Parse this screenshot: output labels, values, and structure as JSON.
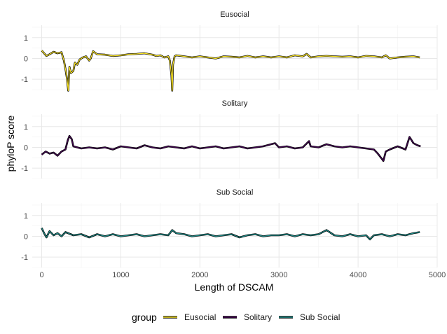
{
  "chart_data": {
    "type": "line",
    "xlabel": "Length of DSCAM",
    "ylabel": "phyloP score",
    "xlim": [
      -120,
      5000
    ],
    "ylim": [
      -1.5,
      1.6
    ],
    "xticks": [
      0,
      1000,
      2000,
      3000,
      4000,
      5000
    ],
    "yticks": [
      -1,
      0,
      1
    ],
    "grid": true,
    "legend": {
      "title": "group",
      "position": "bottom"
    },
    "facets": [
      {
        "title": "Eusocial",
        "color": "#FDE725",
        "points": [
          [
            0,
            0.38
          ],
          [
            60,
            0.12
          ],
          [
            100,
            0.2
          ],
          [
            150,
            0.32
          ],
          [
            200,
            0.25
          ],
          [
            250,
            0.3
          ],
          [
            280,
            -0.1
          ],
          [
            300,
            -0.5
          ],
          [
            320,
            -1.0
          ],
          [
            335,
            -1.55
          ],
          [
            350,
            -0.4
          ],
          [
            370,
            -0.7
          ],
          [
            400,
            -0.6
          ],
          [
            420,
            -0.2
          ],
          [
            450,
            -0.3
          ],
          [
            480,
            -0.05
          ],
          [
            520,
            0.05
          ],
          [
            560,
            0.1
          ],
          [
            600,
            -0.1
          ],
          [
            620,
            0.0
          ],
          [
            650,
            0.35
          ],
          [
            700,
            0.2
          ],
          [
            800,
            0.18
          ],
          [
            900,
            0.12
          ],
          [
            1000,
            0.15
          ],
          [
            1100,
            0.2
          ],
          [
            1200,
            0.22
          ],
          [
            1300,
            0.25
          ],
          [
            1400,
            0.18
          ],
          [
            1450,
            0.12
          ],
          [
            1500,
            0.15
          ],
          [
            1550,
            0.05
          ],
          [
            1600,
            0.1
          ],
          [
            1620,
            -0.1
          ],
          [
            1640,
            -0.8
          ],
          [
            1650,
            -1.55
          ],
          [
            1660,
            -0.3
          ],
          [
            1680,
            0.1
          ],
          [
            1700,
            0.15
          ],
          [
            1800,
            0.1
          ],
          [
            1900,
            0.05
          ],
          [
            2000,
            0.1
          ],
          [
            2100,
            0.05
          ],
          [
            2200,
            0.0
          ],
          [
            2300,
            0.1
          ],
          [
            2400,
            0.08
          ],
          [
            2500,
            0.05
          ],
          [
            2600,
            0.12
          ],
          [
            2700,
            0.05
          ],
          [
            2800,
            0.1
          ],
          [
            2900,
            0.05
          ],
          [
            3000,
            0.1
          ],
          [
            3100,
            0.05
          ],
          [
            3200,
            0.15
          ],
          [
            3300,
            0.1
          ],
          [
            3350,
            0.22
          ],
          [
            3400,
            0.05
          ],
          [
            3500,
            0.1
          ],
          [
            3600,
            0.12
          ],
          [
            3700,
            0.1
          ],
          [
            3800,
            0.08
          ],
          [
            3900,
            0.1
          ],
          [
            4000,
            0.05
          ],
          [
            4100,
            0.12
          ],
          [
            4200,
            0.1
          ],
          [
            4300,
            0.05
          ],
          [
            4350,
            0.15
          ],
          [
            4400,
            0.0
          ],
          [
            4500,
            0.05
          ],
          [
            4600,
            0.08
          ],
          [
            4700,
            0.1
          ],
          [
            4780,
            0.05
          ]
        ]
      },
      {
        "title": "Solitary",
        "color": "#440154",
        "points": [
          [
            0,
            -0.35
          ],
          [
            50,
            -0.2
          ],
          [
            100,
            -0.3
          ],
          [
            150,
            -0.25
          ],
          [
            200,
            -0.4
          ],
          [
            250,
            -0.2
          ],
          [
            300,
            -0.1
          ],
          [
            330,
            0.35
          ],
          [
            350,
            0.55
          ],
          [
            380,
            0.4
          ],
          [
            400,
            0.05
          ],
          [
            450,
            0.0
          ],
          [
            500,
            -0.05
          ],
          [
            600,
            0.0
          ],
          [
            700,
            -0.05
          ],
          [
            800,
            0.0
          ],
          [
            900,
            -0.1
          ],
          [
            1000,
            0.05
          ],
          [
            1100,
            0.0
          ],
          [
            1200,
            -0.05
          ],
          [
            1300,
            0.1
          ],
          [
            1400,
            0.0
          ],
          [
            1500,
            -0.05
          ],
          [
            1600,
            0.05
          ],
          [
            1700,
            0.0
          ],
          [
            1800,
            -0.05
          ],
          [
            1900,
            0.05
          ],
          [
            2000,
            -0.05
          ],
          [
            2100,
            0.0
          ],
          [
            2200,
            0.05
          ],
          [
            2300,
            -0.05
          ],
          [
            2400,
            0.0
          ],
          [
            2500,
            0.05
          ],
          [
            2600,
            -0.05
          ],
          [
            2700,
            0.0
          ],
          [
            2800,
            0.05
          ],
          [
            2900,
            0.15
          ],
          [
            2950,
            0.2
          ],
          [
            3000,
            0.0
          ],
          [
            3100,
            0.05
          ],
          [
            3200,
            -0.05
          ],
          [
            3300,
            0.0
          ],
          [
            3380,
            0.3
          ],
          [
            3400,
            0.05
          ],
          [
            3500,
            0.0
          ],
          [
            3600,
            0.15
          ],
          [
            3700,
            0.05
          ],
          [
            3800,
            0.0
          ],
          [
            3900,
            0.05
          ],
          [
            4000,
            0.0
          ],
          [
            4100,
            -0.05
          ],
          [
            4200,
            -0.1
          ],
          [
            4250,
            -0.3
          ],
          [
            4300,
            -0.55
          ],
          [
            4320,
            -0.65
          ],
          [
            4350,
            -0.2
          ],
          [
            4400,
            -0.1
          ],
          [
            4500,
            0.05
          ],
          [
            4600,
            -0.1
          ],
          [
            4650,
            0.5
          ],
          [
            4700,
            0.2
          ],
          [
            4750,
            0.1
          ],
          [
            4790,
            0.05
          ]
        ]
      },
      {
        "title": "Sub Social",
        "color": "#21908C",
        "points": [
          [
            0,
            0.4
          ],
          [
            30,
            0.15
          ],
          [
            60,
            -0.05
          ],
          [
            100,
            0.25
          ],
          [
            150,
            0.05
          ],
          [
            200,
            0.15
          ],
          [
            250,
            0.0
          ],
          [
            300,
            0.2
          ],
          [
            400,
            0.05
          ],
          [
            500,
            0.1
          ],
          [
            600,
            -0.05
          ],
          [
            700,
            0.1
          ],
          [
            800,
            0.0
          ],
          [
            900,
            0.1
          ],
          [
            1000,
            0.0
          ],
          [
            1100,
            0.05
          ],
          [
            1200,
            0.1
          ],
          [
            1300,
            0.0
          ],
          [
            1400,
            0.05
          ],
          [
            1500,
            0.1
          ],
          [
            1600,
            0.05
          ],
          [
            1650,
            0.3
          ],
          [
            1700,
            0.15
          ],
          [
            1800,
            0.1
          ],
          [
            1900,
            0.0
          ],
          [
            2000,
            0.05
          ],
          [
            2100,
            0.1
          ],
          [
            2200,
            0.0
          ],
          [
            2300,
            0.05
          ],
          [
            2400,
            0.1
          ],
          [
            2500,
            -0.05
          ],
          [
            2600,
            0.05
          ],
          [
            2700,
            0.1
          ],
          [
            2800,
            0.0
          ],
          [
            2900,
            0.05
          ],
          [
            3000,
            0.05
          ],
          [
            3100,
            0.1
          ],
          [
            3200,
            0.0
          ],
          [
            3300,
            0.1
          ],
          [
            3400,
            0.05
          ],
          [
            3500,
            0.1
          ],
          [
            3600,
            0.3
          ],
          [
            3700,
            0.05
          ],
          [
            3800,
            0.0
          ],
          [
            3900,
            0.1
          ],
          [
            4000,
            0.0
          ],
          [
            4100,
            0.05
          ],
          [
            4150,
            -0.15
          ],
          [
            4200,
            0.05
          ],
          [
            4300,
            0.1
          ],
          [
            4400,
            0.0
          ],
          [
            4500,
            0.1
          ],
          [
            4600,
            0.05
          ],
          [
            4700,
            0.15
          ],
          [
            4780,
            0.2
          ]
        ]
      }
    ]
  }
}
